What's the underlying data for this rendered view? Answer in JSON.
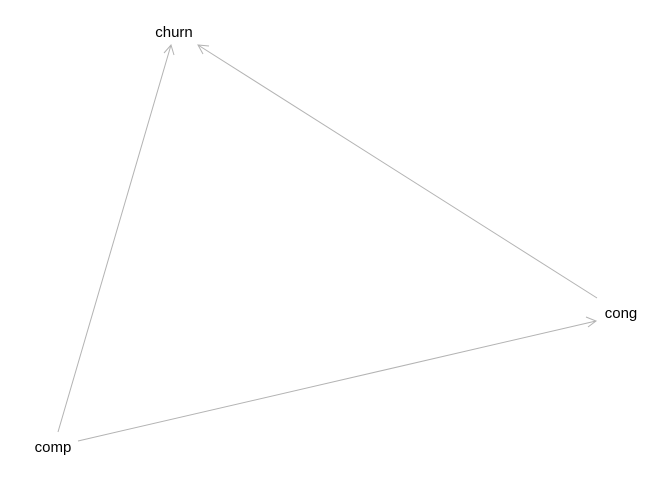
{
  "diagram": {
    "nodes": [
      {
        "id": "churn",
        "label": "churn"
      },
      {
        "id": "cong",
        "label": "cong"
      },
      {
        "id": "comp",
        "label": "comp"
      }
    ],
    "edges": [
      {
        "from": "comp",
        "to": "churn"
      },
      {
        "from": "cong",
        "to": "churn"
      },
      {
        "from": "comp",
        "to": "cong"
      }
    ],
    "colors": {
      "edge": "#b3b3b3",
      "label": "#000000",
      "background": "#ffffff"
    }
  }
}
